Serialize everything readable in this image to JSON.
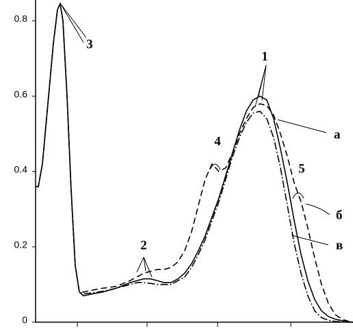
{
  "chart_data": {
    "type": "line",
    "x": [
      0,
      4,
      10,
      18,
      26,
      32,
      36,
      40,
      46,
      52,
      58,
      64,
      70,
      83,
      98,
      118,
      138,
      148,
      158,
      168,
      178,
      188,
      198,
      208,
      218,
      228,
      238,
      248,
      258,
      268,
      278,
      288,
      298,
      308,
      318,
      328,
      338,
      348,
      358,
      368,
      378,
      388,
      398,
      408,
      418,
      428,
      438,
      448,
      458,
      464
    ],
    "xlim": [
      0,
      464
    ],
    "ylim": [
      0,
      0.85
    ],
    "yticks": [
      0,
      0.2,
      0.4,
      0.6,
      0.8
    ],
    "series": [
      {
        "name": "а",
        "color": "#000000",
        "dash": "solid",
        "values": [
          0.36,
          0.36,
          0.42,
          0.58,
          0.74,
          0.83,
          0.845,
          0.8,
          0.6,
          0.35,
          0.15,
          0.08,
          0.07,
          0.075,
          0.08,
          0.09,
          0.105,
          0.11,
          0.115,
          0.115,
          0.11,
          0.105,
          0.105,
          0.115,
          0.13,
          0.155,
          0.19,
          0.23,
          0.28,
          0.33,
          0.39,
          0.45,
          0.51,
          0.56,
          0.59,
          0.6,
          0.59,
          0.54,
          0.46,
          0.37,
          0.27,
          0.18,
          0.11,
          0.06,
          0.03,
          0.015,
          0.008,
          0.004,
          0.001,
          0
        ]
      },
      {
        "name": "б",
        "color": "#000000",
        "dash": "dashed",
        "values": [
          0.36,
          0.36,
          0.42,
          0.58,
          0.74,
          0.83,
          0.845,
          0.8,
          0.6,
          0.35,
          0.15,
          0.08,
          0.08,
          0.085,
          0.09,
          0.095,
          0.11,
          0.12,
          0.13,
          0.135,
          0.14,
          0.14,
          0.145,
          0.16,
          0.19,
          0.24,
          0.31,
          0.38,
          0.42,
          0.4,
          0.41,
          0.45,
          0.5,
          0.54,
          0.57,
          0.58,
          0.575,
          0.55,
          0.5,
          0.44,
          0.37,
          0.32,
          0.25,
          0.17,
          0.1,
          0.05,
          0.02,
          0.008,
          0.002,
          0
        ]
      },
      {
        "name": "в",
        "color": "#000000",
        "dash": "dashdot",
        "values": [
          0.36,
          0.36,
          0.42,
          0.58,
          0.74,
          0.83,
          0.845,
          0.8,
          0.6,
          0.35,
          0.15,
          0.08,
          0.075,
          0.078,
          0.082,
          0.09,
          0.1,
          0.105,
          0.105,
          0.103,
          0.1,
          0.1,
          0.1,
          0.11,
          0.12,
          0.145,
          0.18,
          0.22,
          0.27,
          0.32,
          0.38,
          0.44,
          0.49,
          0.53,
          0.555,
          0.56,
          0.54,
          0.49,
          0.41,
          0.31,
          0.21,
          0.13,
          0.07,
          0.03,
          0.012,
          0.005,
          0.002,
          0.001,
          0,
          0
        ]
      }
    ],
    "annotations": [
      "1",
      "2",
      "3",
      "4",
      "5"
    ]
  }
}
